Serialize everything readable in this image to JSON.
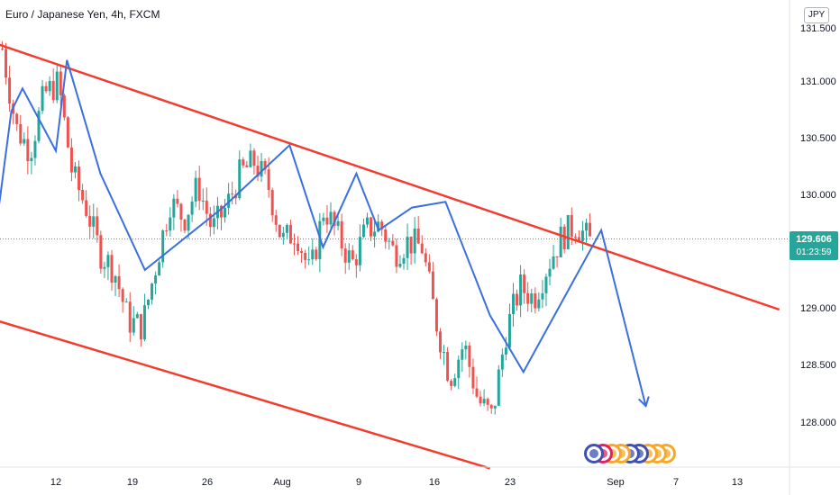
{
  "chart_data": {
    "type": "candlestick",
    "title": "Euro / Japanese Yen, 4h, FXCM",
    "currency": "JPY",
    "y_ticks": [
      "131.500",
      "131.000",
      "130.500",
      "130.000",
      "129.000",
      "128.500",
      "128.000"
    ],
    "x_ticks": [
      "12",
      "19",
      "26",
      "Aug",
      "9",
      "16",
      "23",
      "Sep",
      "7",
      "13"
    ],
    "ylim": [
      127.6,
      131.7
    ],
    "last_price": "129.606",
    "countdown": "01:23:59",
    "colors": {
      "up": "#26a69a",
      "down": "#ef5350",
      "trendline": "#f23c2f",
      "pattern": "#3a6fe0",
      "price_line": "#26a69a"
    },
    "candle_path": [
      131.3,
      130.6,
      130.4,
      130.9,
      131.0,
      130.2,
      129.9,
      129.5,
      129.35,
      128.9,
      128.85,
      129.4,
      129.95,
      129.8,
      130.1,
      129.7,
      129.9,
      130.2,
      130.3,
      130.1,
      129.6,
      129.7,
      129.3,
      129.9,
      129.65,
      129.4,
      129.7,
      129.75,
      129.5,
      129.6,
      129.55,
      128.9,
      128.4,
      128.7,
      128.2,
      128.05,
      128.8,
      129.2,
      129.1,
      129.4,
      129.65,
      129.75,
      129.6
    ],
    "channel_lines": [
      {
        "from": [
          "2021-06-23",
          131.8
        ],
        "to": [
          "2021-09-15",
          129.0
        ]
      },
      {
        "from": [
          "2021-06-30",
          129.1
        ],
        "to": [
          "2021-08-20",
          127.6
        ]
      }
    ],
    "pattern_path": [
      [
        "2021-07-05",
        129.95
      ],
      [
        "2021-07-06",
        129.3
      ],
      [
        "2021-07-07",
        130.0
      ],
      [
        "2021-07-08",
        130.75
      ],
      [
        "2021-07-09",
        130.95
      ],
      [
        "2021-07-12",
        130.4
      ],
      [
        "2021-07-13",
        131.2
      ],
      [
        "2021-07-16",
        130.2
      ],
      [
        "2021-07-20",
        129.35
      ],
      [
        "2021-07-27",
        129.9
      ],
      [
        "2021-08-02",
        130.45
      ],
      [
        "2021-08-05",
        129.55
      ],
      [
        "2021-08-08",
        130.2
      ],
      [
        "2021-08-10",
        129.7
      ],
      [
        "2021-08-13",
        129.9
      ],
      [
        "2021-08-16",
        129.95
      ],
      [
        "2021-08-20",
        128.95
      ],
      [
        "2021-08-23",
        128.45
      ],
      [
        "2021-08-30",
        129.7
      ],
      [
        "2021-09-03",
        128.15
      ]
    ],
    "projection_arrow": {
      "from": [
        "2021-08-30",
        129.7
      ],
      "to": [
        "2021-09-03",
        128.15
      ]
    },
    "events": [
      {
        "icon": "earth-icon",
        "color": "#3f51b5"
      },
      {
        "icon": "flag-icon",
        "color": "#e91e63"
      },
      {
        "icon": "coin-icon",
        "color": "#f9a825"
      },
      {
        "icon": "coin-icon",
        "color": "#f9a825"
      },
      {
        "icon": "earth-icon",
        "color": "#3f51b5"
      },
      {
        "icon": "earth-icon",
        "color": "#3f51b5"
      },
      {
        "icon": "coin-icon",
        "color": "#f9a825"
      },
      {
        "icon": "coin-icon",
        "color": "#f9a825"
      },
      {
        "icon": "coin-icon",
        "color": "#f9a825"
      }
    ]
  }
}
